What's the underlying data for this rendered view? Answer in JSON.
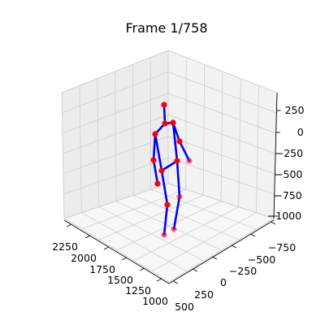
{
  "title": "Frame 1/758",
  "chart_data": {
    "type": "scatter",
    "projection": "3d",
    "title": "Frame 1/758",
    "axis_x": {
      "ticks": [
        2250,
        2000,
        1750,
        1500,
        1250,
        1000
      ],
      "labels": [
        "2250",
        "2000",
        "1750",
        "1500",
        "1250",
        "1000"
      ]
    },
    "axis_y": {
      "ticks": [
        -750,
        -500,
        -250,
        0,
        250,
        500
      ],
      "labels": [
        "−750",
        "−500",
        "−250",
        "0",
        "250",
        "500"
      ]
    },
    "axis_z": {
      "ticks": [
        250,
        0,
        -250,
        -500,
        -750,
        -1000
      ],
      "labels": [
        "250",
        "0",
        "−250",
        "−500",
        "−750",
        "−1000"
      ]
    },
    "grid": true,
    "marker_color": "#ff0000",
    "line_color": "#0000ff",
    "joints": [
      {
        "name": "head",
        "z": 255
      },
      {
        "name": "neck",
        "z": 160
      },
      {
        "name": "left-shoulder",
        "z": 190
      },
      {
        "name": "right-shoulder",
        "z": 130
      },
      {
        "name": "left-elbow",
        "z": -30
      },
      {
        "name": "right-elbow",
        "z": -10
      },
      {
        "name": "left-wrist",
        "z": -285
      },
      {
        "name": "right-wrist",
        "z": -230
      },
      {
        "name": "left-hip",
        "z": -385
      },
      {
        "name": "right-hip",
        "z": -310
      },
      {
        "name": "left-knee",
        "z": -685
      },
      {
        "name": "right-knee",
        "z": -545
      },
      {
        "name": "left-ankle",
        "z": -1015
      },
      {
        "name": "right-ankle",
        "z": -985
      }
    ]
  }
}
